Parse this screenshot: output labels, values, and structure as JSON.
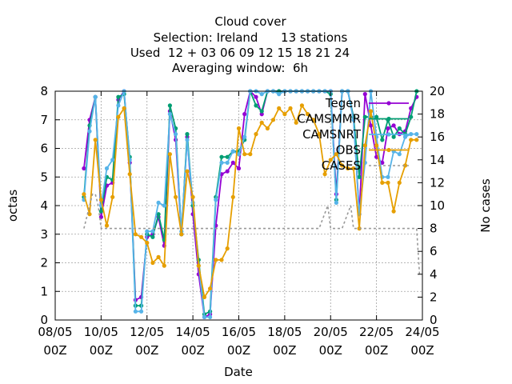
{
  "chart_data": {
    "type": "line",
    "title_lines": [
      "Cloud cover",
      "Selection: Ireland      13 stations",
      "Used  12 + 03 06 09 12 15 18 21 24",
      "Averaging window:  6h"
    ],
    "xlabel": "Date",
    "ylabel_left": "octas",
    "ylabel_right": "No cases",
    "x_range": [
      "08/05 00Z",
      "24/05 00Z"
    ],
    "y_left_range": [
      0,
      8
    ],
    "y_right_range": [
      0,
      20
    ],
    "x_ticks": [
      {
        "top": "08/05",
        "bottom": "00Z"
      },
      {
        "top": "10/05",
        "bottom": "00Z"
      },
      {
        "top": "12/05",
        "bottom": "00Z"
      },
      {
        "top": "14/05",
        "bottom": "00Z"
      },
      {
        "top": "16/05",
        "bottom": "00Z"
      },
      {
        "top": "18/05",
        "bottom": "00Z"
      },
      {
        "top": "20/05",
        "bottom": "00Z"
      },
      {
        "top": "22/05",
        "bottom": "00Z"
      },
      {
        "top": "24/05",
        "bottom": "00Z"
      }
    ],
    "y_left_ticks": [
      "0",
      "1",
      "2",
      "3",
      "4",
      "5",
      "6",
      "7",
      "8"
    ],
    "y_right_ticks": [
      "0",
      "2",
      "4",
      "6",
      "8",
      "10",
      "12",
      "14",
      "16",
      "18",
      "20"
    ],
    "grid": true,
    "legend_position": "top-right",
    "series": [
      {
        "name": "Tegen",
        "axis": "left",
        "color": "#9400d3",
        "x": [
          9.25,
          9.5,
          9.75,
          10.0,
          10.25,
          10.5,
          10.75,
          11.0,
          11.25,
          11.5,
          11.75,
          12.0,
          12.25,
          12.5,
          12.75,
          13.0,
          13.25,
          13.5,
          13.75,
          14.0,
          14.25,
          14.5,
          14.75,
          15.0,
          15.25,
          15.5,
          15.75,
          16.0,
          16.25,
          16.5,
          16.75,
          17.0,
          17.25,
          17.5,
          17.75,
          18.0,
          18.25,
          18.5,
          18.75,
          19.0,
          19.25,
          19.5,
          19.75,
          20.0,
          20.25,
          20.5,
          20.75,
          21.0,
          21.25,
          21.5,
          21.75,
          22.0,
          22.25,
          22.5,
          22.75,
          23.0,
          23.25,
          23.5,
          23.75
        ],
        "y": [
          5.3,
          7.0,
          7.8,
          3.6,
          4.7,
          4.8,
          7.7,
          8.0,
          5.5,
          0.7,
          0.8,
          2.9,
          3.0,
          3.6,
          2.6,
          7.3,
          6.3,
          3.0,
          6.4,
          3.7,
          1.6,
          0.1,
          0.2,
          3.3,
          5.1,
          5.2,
          5.5,
          5.3,
          7.2,
          8.0,
          7.8,
          7.2,
          8.0,
          8.0,
          8.0,
          8.0,
          8.0,
          8.0,
          8.0,
          8.0,
          8.0,
          8.0,
          8.0,
          8.0,
          4.4,
          8.0,
          8.0,
          7.1,
          3.7,
          7.9,
          6.8,
          5.7,
          5.5,
          6.7,
          6.8,
          6.5,
          6.6,
          7.4,
          7.8
        ]
      },
      {
        "name": "CAMSMMR",
        "axis": "left",
        "color": "#009e73",
        "x": [
          9.25,
          9.5,
          9.75,
          10.0,
          10.25,
          10.5,
          10.75,
          11.0,
          11.25,
          11.5,
          11.75,
          12.0,
          12.25,
          12.5,
          12.75,
          13.0,
          13.25,
          13.5,
          13.75,
          14.0,
          14.25,
          14.5,
          14.75,
          15.0,
          15.25,
          15.5,
          15.75,
          16.0,
          16.25,
          16.5,
          16.75,
          17.0,
          17.25,
          17.5,
          17.75,
          18.0,
          18.25,
          18.5,
          18.75,
          19.0,
          19.25,
          19.5,
          19.75,
          20.0,
          20.25,
          20.5,
          20.75,
          21.0,
          21.25,
          21.5,
          21.75,
          22.0,
          22.25,
          22.5,
          22.75,
          23.0,
          23.25,
          23.5,
          23.75
        ],
        "y": [
          4.3,
          6.8,
          7.8,
          3.8,
          5.0,
          4.9,
          7.8,
          7.9,
          5.7,
          0.5,
          0.5,
          3.0,
          2.9,
          3.7,
          2.8,
          7.5,
          6.7,
          3.0,
          6.5,
          4.0,
          2.1,
          0.2,
          0.3,
          4.3,
          5.7,
          5.7,
          5.9,
          5.9,
          6.3,
          8.0,
          7.5,
          7.3,
          8.0,
          8.0,
          8.0,
          8.0,
          8.0,
          8.0,
          8.0,
          8.0,
          8.0,
          8.0,
          8.0,
          7.9,
          4.2,
          8.0,
          8.0,
          7.1,
          5.0,
          7.1,
          7.1,
          7.1,
          6.3,
          7.0,
          6.4,
          6.7,
          6.5,
          7.1,
          8.0
        ]
      },
      {
        "name": "CAMSNRT",
        "axis": "left",
        "color": "#56b4e9",
        "x": [
          9.25,
          9.5,
          9.75,
          10.0,
          10.25,
          10.5,
          10.75,
          11.0,
          11.25,
          11.5,
          11.75,
          12.0,
          12.25,
          12.5,
          12.75,
          13.0,
          13.25,
          13.5,
          13.75,
          14.0,
          14.25,
          14.5,
          14.75,
          15.0,
          15.25,
          15.5,
          15.75,
          16.0,
          16.25,
          16.5,
          16.75,
          17.0,
          17.25,
          17.5,
          17.75,
          18.0,
          18.25,
          18.5,
          18.75,
          19.0,
          19.25,
          19.5,
          19.75,
          20.0,
          20.25,
          20.5,
          20.75,
          21.0,
          21.25,
          21.5,
          21.75,
          22.0,
          22.25,
          22.5,
          22.75,
          23.0,
          23.25,
          23.5,
          23.75
        ],
        "y": [
          4.2,
          6.6,
          7.8,
          4.0,
          5.3,
          5.6,
          7.5,
          8.0,
          5.6,
          0.3,
          0.3,
          3.1,
          3.1,
          4.1,
          4.0,
          7.2,
          6.5,
          3.1,
          6.3,
          4.1,
          1.9,
          0.1,
          0.1,
          4.2,
          5.5,
          5.5,
          5.9,
          5.8,
          6.4,
          8.0,
          8.0,
          7.9,
          8.0,
          8.0,
          7.9,
          8.0,
          8.0,
          8.0,
          8.0,
          8.0,
          8.0,
          8.0,
          8.0,
          8.0,
          4.1,
          8.0,
          8.0,
          7.0,
          3.7,
          5.5,
          8.0,
          6.4,
          5.0,
          5.0,
          5.9,
          5.8,
          6.4,
          6.5,
          6.5
        ]
      },
      {
        "name": "OBS",
        "axis": "left",
        "color": "#e69f00",
        "x": [
          9.25,
          9.5,
          9.75,
          10.0,
          10.25,
          10.5,
          10.75,
          11.0,
          11.25,
          11.5,
          11.75,
          12.0,
          12.25,
          12.5,
          12.75,
          13.0,
          13.25,
          13.5,
          13.75,
          14.0,
          14.25,
          14.5,
          14.75,
          15.0,
          15.25,
          15.5,
          15.75,
          16.0,
          16.25,
          16.5,
          16.75,
          17.0,
          17.25,
          17.5,
          17.75,
          18.0,
          18.25,
          18.5,
          18.75,
          19.0,
          19.25,
          19.5,
          19.75,
          20.0,
          20.25,
          20.5,
          20.75,
          21.0,
          21.25,
          21.5,
          21.75,
          22.0,
          22.25,
          22.5,
          22.75,
          23.0,
          23.25,
          23.5,
          23.75
        ],
        "y": [
          4.4,
          3.7,
          6.3,
          4.2,
          3.3,
          4.3,
          7.1,
          7.4,
          5.1,
          3.0,
          2.9,
          2.7,
          2.0,
          2.2,
          1.9,
          5.8,
          4.3,
          3.0,
          5.2,
          4.3,
          1.9,
          0.8,
          1.1,
          2.1,
          2.1,
          2.5,
          4.3,
          6.7,
          5.8,
          5.8,
          6.5,
          6.9,
          6.7,
          7.0,
          7.4,
          7.2,
          7.4,
          6.9,
          7.5,
          7.2,
          7.0,
          6.5,
          5.1,
          5.6,
          5.8,
          5.4,
          5.3,
          5.3,
          3.2,
          6.1,
          7.3,
          6.1,
          4.8,
          4.8,
          3.8,
          4.8,
          5.4,
          6.3,
          6.3
        ]
      },
      {
        "name": "CASES",
        "axis": "right",
        "color": "#999999",
        "dashed": true,
        "x": [
          9.25,
          9.5,
          9.625,
          9.75,
          9.875,
          10.0,
          10.25,
          10.5,
          11.0,
          12.0,
          13.0,
          14.0,
          15.0,
          16.0,
          17.0,
          18.0,
          19.0,
          19.5,
          19.875,
          20.0,
          20.5,
          20.875,
          21.0,
          21.25,
          21.5,
          22.0,
          22.5,
          23.0,
          23.5,
          23.75,
          23.875
        ],
        "y": [
          8,
          10,
          11,
          11,
          10,
          8,
          8,
          8,
          8,
          8,
          8,
          8,
          8,
          8,
          8,
          8,
          8,
          8,
          10,
          8,
          8,
          10,
          8,
          8,
          8,
          8,
          8,
          8,
          8,
          8,
          4
        ]
      }
    ]
  }
}
